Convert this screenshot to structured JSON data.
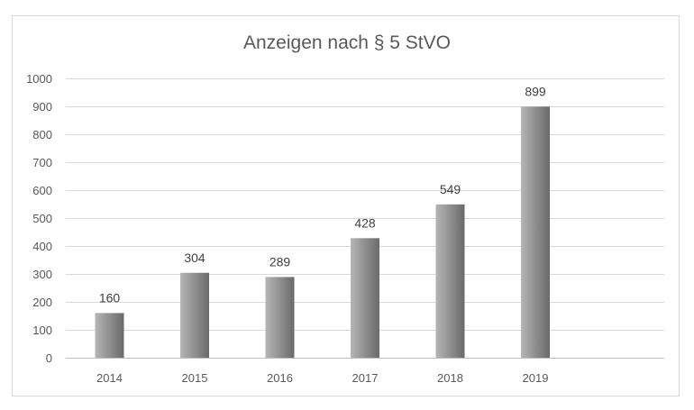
{
  "chart_data": {
    "type": "bar",
    "title": "Anzeigen nach § 5 StVO",
    "categories": [
      "2014",
      "2015",
      "2016",
      "2017",
      "2018",
      "2019"
    ],
    "values": [
      160,
      304,
      289,
      428,
      549,
      899
    ],
    "data_labels": [
      "160",
      "304",
      "289",
      "428",
      "549",
      "899"
    ],
    "ylim": [
      0,
      1000
    ],
    "yticks": [
      0,
      100,
      200,
      300,
      400,
      500,
      600,
      700,
      800,
      900,
      1000
    ],
    "xlabel": "",
    "ylabel": "",
    "grid": true,
    "legend": "none"
  },
  "colors": {
    "bar_light": "#b5b5b5",
    "bar_dark": "#6a6a6a",
    "gridline": "#d9d9d9",
    "axis": "#bfbfbf"
  }
}
